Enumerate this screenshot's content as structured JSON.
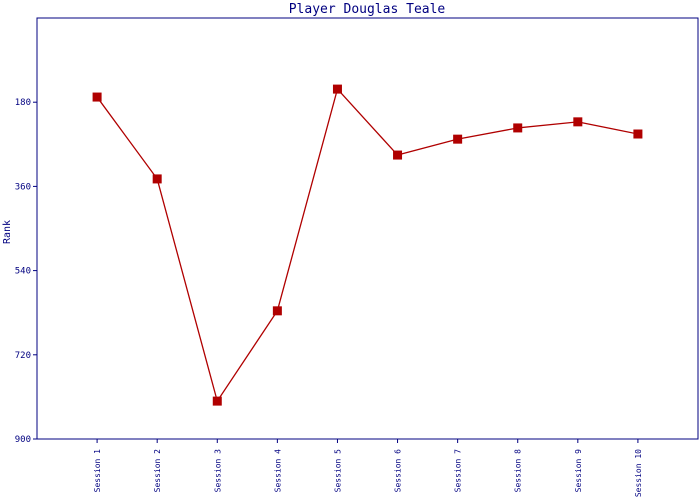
{
  "chart_data": {
    "type": "line",
    "title": "Player Douglas Teale",
    "y_label": "Rank",
    "categories": [
      "Session 1",
      "Session 2",
      "Session 3",
      "Session 4",
      "Session 5",
      "Session 6",
      "Session 7",
      "Session 8",
      "Session 9",
      "Session 10"
    ],
    "series": [
      {
        "name": "Rank",
        "color": "#b00000",
        "values": [
          169,
          344,
          819,
          626,
          152,
          293,
          259,
          235,
          222,
          248
        ]
      }
    ],
    "ylim": [
      0,
      900
    ],
    "yticks": [
      180,
      360,
      540,
      720,
      900
    ],
    "y_inverted": true,
    "grid": false
  }
}
